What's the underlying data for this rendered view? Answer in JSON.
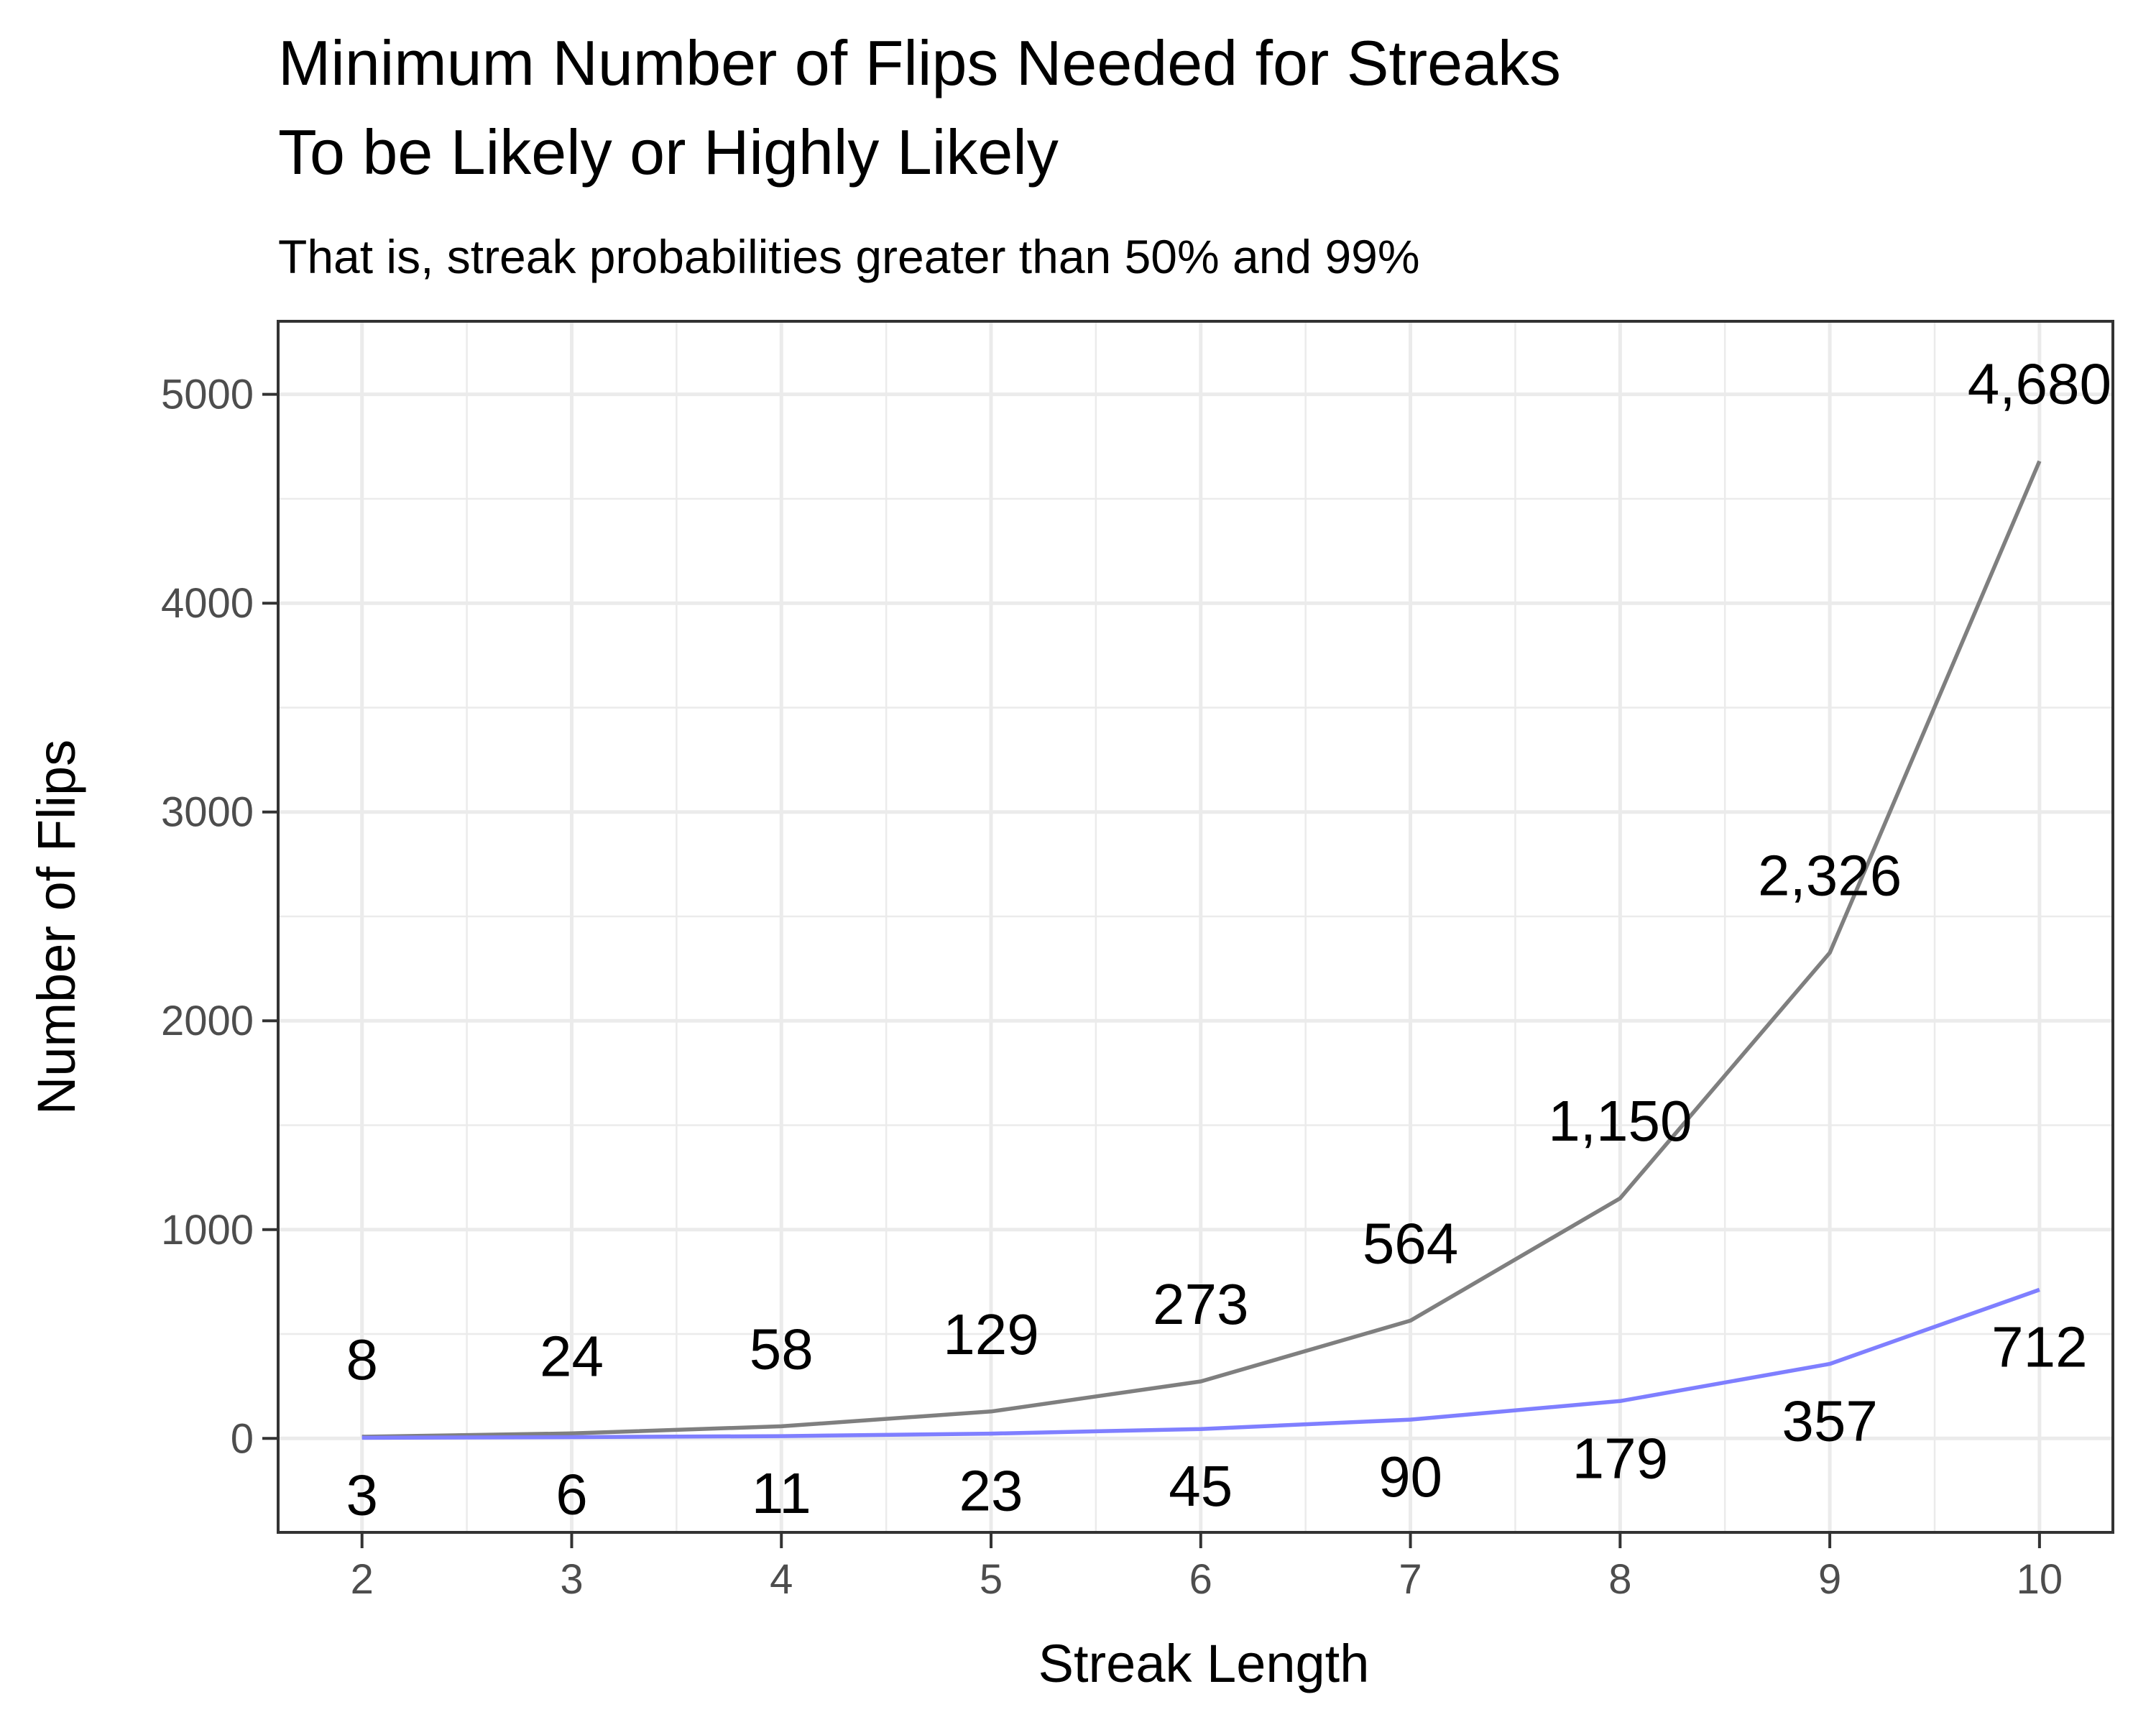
{
  "chart_data": {
    "type": "line",
    "title_lines": [
      "Minimum Number of Flips Needed for Streaks",
      "To be Likely or Highly Likely"
    ],
    "subtitle": "That is, streak probabilities greater than 50% and 99%",
    "xlabel": "Streak Length",
    "ylabel": "Number of Flips",
    "x": [
      2,
      3,
      4,
      5,
      6,
      7,
      8,
      9,
      10
    ],
    "x_ticks": [
      "2",
      "3",
      "4",
      "5",
      "6",
      "7",
      "8",
      "9",
      "10"
    ],
    "y_ticks": [
      "0",
      "1000",
      "2000",
      "3000",
      "4000",
      "5000"
    ],
    "y_tick_values": [
      0,
      1000,
      2000,
      3000,
      4000,
      5000
    ],
    "xlim": [
      1.6,
      10.35
    ],
    "ylim": [
      -450,
      5350
    ],
    "grid": true,
    "series": [
      {
        "values": [
          8,
          24,
          58,
          129,
          273,
          564,
          1150,
          2326,
          4680
        ],
        "labels": [
          "8",
          "24",
          "58",
          "129",
          "273",
          "564",
          "1,150",
          "2,326",
          "4,680"
        ],
        "color": "#7f7f7f"
      },
      {
        "values": [
          3,
          6,
          11,
          23,
          45,
          90,
          179,
          357,
          712
        ],
        "labels": [
          "3",
          "6",
          "11",
          "23",
          "45",
          "90",
          "179",
          "357",
          "712"
        ],
        "color": "#7f7fff"
      }
    ]
  }
}
